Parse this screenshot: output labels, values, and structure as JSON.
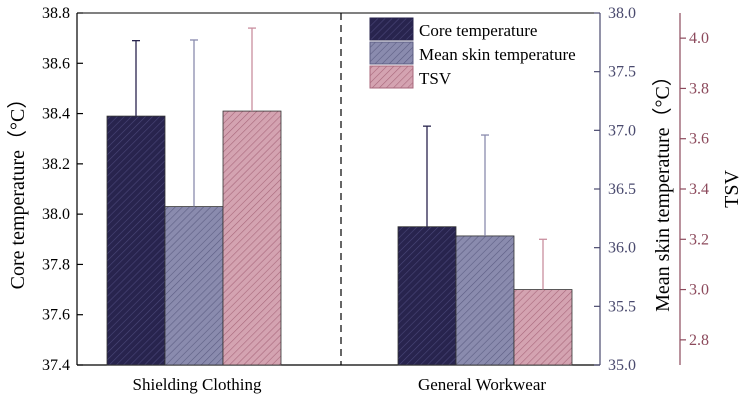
{
  "chart_data": {
    "type": "bar",
    "categories": [
      "Shielding Clothing",
      "General Workwear"
    ],
    "series": [
      {
        "name": "Core temperature",
        "axis": "left",
        "values": [
          38.39,
          37.95
        ],
        "error_plus": [
          0.3,
          0.4
        ],
        "color": "#28244e"
      },
      {
        "name": "Mean skin temperature",
        "axis": "right1",
        "values": [
          36.35,
          36.1
        ],
        "error_plus": [
          1.42,
          0.86
        ],
        "color": "#8a8bae"
      },
      {
        "name": "TSV",
        "axis": "right2",
        "values": [
          3.71,
          3.0
        ],
        "error_plus": [
          0.33,
          0.2
        ],
        "color": "#c98f9f"
      }
    ],
    "axes": {
      "left": {
        "label": "Core temperature（°C）",
        "range": [
          37.4,
          38.8
        ],
        "ticks": [
          "37.4",
          "37.6",
          "37.8",
          "38.0",
          "38.2",
          "38.4",
          "38.6",
          "38.8"
        ],
        "color": "#000000"
      },
      "right1": {
        "label": "Mean skin temperature（°C）",
        "range": [
          35.0,
          38.0
        ],
        "ticks": [
          "35.0",
          "35.5",
          "36.0",
          "36.5",
          "37.0",
          "37.5",
          "38.0"
        ],
        "color": "#4a4a6e"
      },
      "right2": {
        "label": "TSV",
        "range": [
          2.7,
          4.1
        ],
        "ticks": [
          "2.8",
          "3.0",
          "3.2",
          "3.4",
          "3.6",
          "3.8",
          "4.0"
        ],
        "color": "#8c4a5c"
      }
    },
    "legend": {
      "position": "top-right",
      "items": [
        "Core temperature",
        "Mean skin temperature",
        "TSV"
      ]
    },
    "divider": "dashed vertical line between categories",
    "pattern": "diagonal hatch"
  }
}
